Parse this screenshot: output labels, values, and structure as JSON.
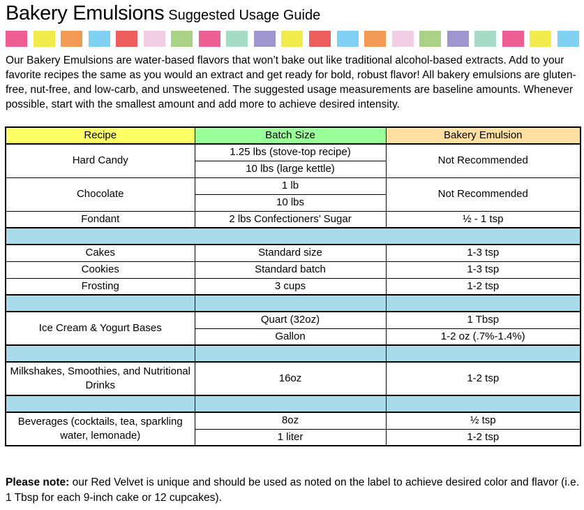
{
  "title": {
    "main": "Bakery Emulsions",
    "sub": "Suggested Usage Guide"
  },
  "palette_band": [
    "#EC5E94",
    "#F2EB4E",
    "#F09A55",
    "#7FD0F2",
    "#ED5D5D",
    "#F2CEE2",
    "#A9D287",
    "#EC5E94",
    "#A8DBC5",
    "#A195CF",
    "#F2EB4E",
    "#ED5D5D",
    "#7FD0F2",
    "#F09A55",
    "#F2CEE2",
    "#A9D287",
    "#A195CF",
    "#A8DBC5",
    "#EC5E94",
    "#F2EB4E",
    "#7FD0F2"
  ],
  "intro": "Our Bakery Emulsions are water-based flavors that won’t bake out like traditional alcohol-based extracts. Add to your favorite recipes the same as you would an extract and get ready for bold, robust flavor! All bakery emulsions are gluten-free, nut-free, and low-carb, and unsweetened. The suggested usage measurements are baseline amounts. Whenever possible, start with the smallest amount and add more to achieve desired intensity.",
  "table": {
    "spacer_color": "#A8DAEA",
    "headers": [
      {
        "label": "Recipe",
        "color": "#FFFF66"
      },
      {
        "label": "Batch Size",
        "color": "#99FF99"
      },
      {
        "label": "Bakery Emulsion",
        "color": "#FFE0A0"
      }
    ],
    "rows": {
      "hard_candy": {
        "recipe": "Hard Candy",
        "batch1": "1.25 lbs (stove-top recipe)",
        "batch2": "10 lbs (large kettle)",
        "emulsion": "Not Recommended"
      },
      "chocolate": {
        "recipe": "Chocolate",
        "batch1": "1 lb",
        "batch2": "10 lbs",
        "emulsion": "Not Recommended"
      },
      "fondant": {
        "recipe": "Fondant",
        "batch": "2 lbs Confectioners’ Sugar",
        "emulsion": "½ - 1 tsp"
      },
      "cakes": {
        "recipe": "Cakes",
        "batch": "Standard size",
        "emulsion": "1-3 tsp"
      },
      "cookies": {
        "recipe": "Cookies",
        "batch": "Standard batch",
        "emulsion": "1-3 tsp"
      },
      "frosting": {
        "recipe": "Frosting",
        "batch": "3 cups",
        "emulsion": "1-2 tsp"
      },
      "ice_cream": {
        "recipe": "Ice Cream & Yogurt Bases",
        "batch1": "Quart (32oz)",
        "emulsion1": "1 Tbsp",
        "batch2": "Gallon",
        "emulsion2": "1-2 oz (.7%-1.4%)"
      },
      "milkshakes": {
        "recipe": "Milkshakes, Smoothies, and Nutritional Drinks",
        "batch": "16oz",
        "emulsion": "1-2 tsp"
      },
      "beverages": {
        "recipe": "Beverages (cocktails, tea, sparkling water, lemonade)",
        "batch1": "8oz",
        "emulsion1": "½ tsp",
        "batch2": "1 liter",
        "emulsion2": "1-2 tsp"
      }
    }
  },
  "note": {
    "lead": "Please note:",
    "body": " our Red Velvet is unique and should be used as noted on the label to achieve desired color and flavor (i.e. 1 Tbsp for each 9-inch cake or 12 cupcakes)."
  }
}
